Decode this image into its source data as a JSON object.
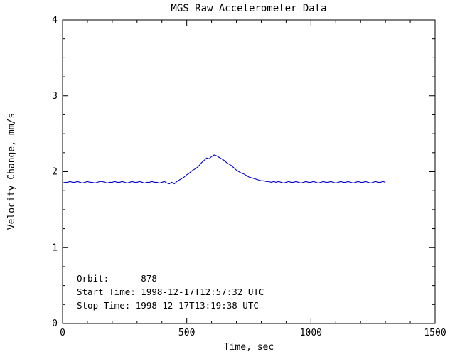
{
  "window": {
    "background": "#ffffff"
  },
  "chart_data": {
    "type": "line",
    "title": "MGS Raw Accelerometer Data",
    "xlabel": "Time, sec",
    "ylabel": "Velocity Change, mm/s",
    "xlim": [
      0,
      1500
    ],
    "ylim": [
      0,
      4
    ],
    "x_ticks": [
      0,
      500,
      1000,
      1500
    ],
    "y_ticks": [
      0,
      1,
      2,
      3,
      4
    ],
    "x_minor_step": 100,
    "y_minor_step": 0.25,
    "grid": "off",
    "legend": "none",
    "line_color": "#0000cc",
    "x": [
      0,
      10,
      20,
      30,
      40,
      50,
      60,
      70,
      80,
      90,
      100,
      110,
      120,
      130,
      140,
      150,
      160,
      170,
      180,
      190,
      200,
      210,
      220,
      230,
      240,
      250,
      260,
      270,
      280,
      290,
      300,
      310,
      320,
      330,
      340,
      350,
      360,
      370,
      380,
      390,
      400,
      410,
      420,
      430,
      440,
      450,
      460,
      470,
      480,
      490,
      500,
      510,
      520,
      530,
      540,
      550,
      560,
      570,
      580,
      590,
      600,
      610,
      620,
      630,
      640,
      650,
      660,
      670,
      680,
      690,
      700,
      710,
      720,
      730,
      740,
      750,
      760,
      770,
      780,
      790,
      800,
      810,
      820,
      830,
      840,
      850,
      860,
      870,
      880,
      890,
      900,
      910,
      920,
      930,
      940,
      950,
      960,
      970,
      980,
      990,
      1000,
      1010,
      1020,
      1030,
      1040,
      1050,
      1060,
      1070,
      1080,
      1090,
      1100,
      1110,
      1120,
      1130,
      1140,
      1150,
      1160,
      1170,
      1180,
      1190,
      1200,
      1210,
      1220,
      1230,
      1240,
      1250,
      1260,
      1270,
      1280,
      1290,
      1300
    ],
    "series": [
      {
        "name": "velocity_change_mm_s",
        "values": [
          1.85,
          1.86,
          1.86,
          1.87,
          1.86,
          1.86,
          1.87,
          1.86,
          1.85,
          1.86,
          1.87,
          1.86,
          1.86,
          1.85,
          1.86,
          1.87,
          1.87,
          1.86,
          1.85,
          1.86,
          1.86,
          1.87,
          1.86,
          1.86,
          1.87,
          1.86,
          1.85,
          1.86,
          1.87,
          1.86,
          1.86,
          1.87,
          1.86,
          1.85,
          1.86,
          1.86,
          1.87,
          1.86,
          1.86,
          1.85,
          1.86,
          1.87,
          1.85,
          1.84,
          1.86,
          1.84,
          1.87,
          1.89,
          1.91,
          1.93,
          1.96,
          1.98,
          2.01,
          2.03,
          2.05,
          2.08,
          2.12,
          2.15,
          2.18,
          2.17,
          2.2,
          2.22,
          2.21,
          2.19,
          2.17,
          2.15,
          2.12,
          2.1,
          2.08,
          2.05,
          2.02,
          2.0,
          1.98,
          1.97,
          1.95,
          1.93,
          1.92,
          1.91,
          1.9,
          1.89,
          1.88,
          1.88,
          1.87,
          1.87,
          1.86,
          1.87,
          1.86,
          1.87,
          1.86,
          1.85,
          1.86,
          1.87,
          1.86,
          1.86,
          1.87,
          1.86,
          1.85,
          1.86,
          1.87,
          1.86,
          1.86,
          1.87,
          1.86,
          1.85,
          1.86,
          1.87,
          1.86,
          1.86,
          1.87,
          1.86,
          1.85,
          1.86,
          1.87,
          1.86,
          1.86,
          1.87,
          1.86,
          1.85,
          1.86,
          1.87,
          1.86,
          1.86,
          1.87,
          1.86,
          1.85,
          1.86,
          1.87,
          1.86,
          1.86,
          1.87,
          1.86
        ]
      }
    ]
  },
  "annotations": {
    "orbit": "Orbit:      878",
    "start_time": "Start Time: 1998-12-17T12:57:32 UTC",
    "stop_time": "Stop Time: 1998-12-17T13:19:38 UTC"
  }
}
